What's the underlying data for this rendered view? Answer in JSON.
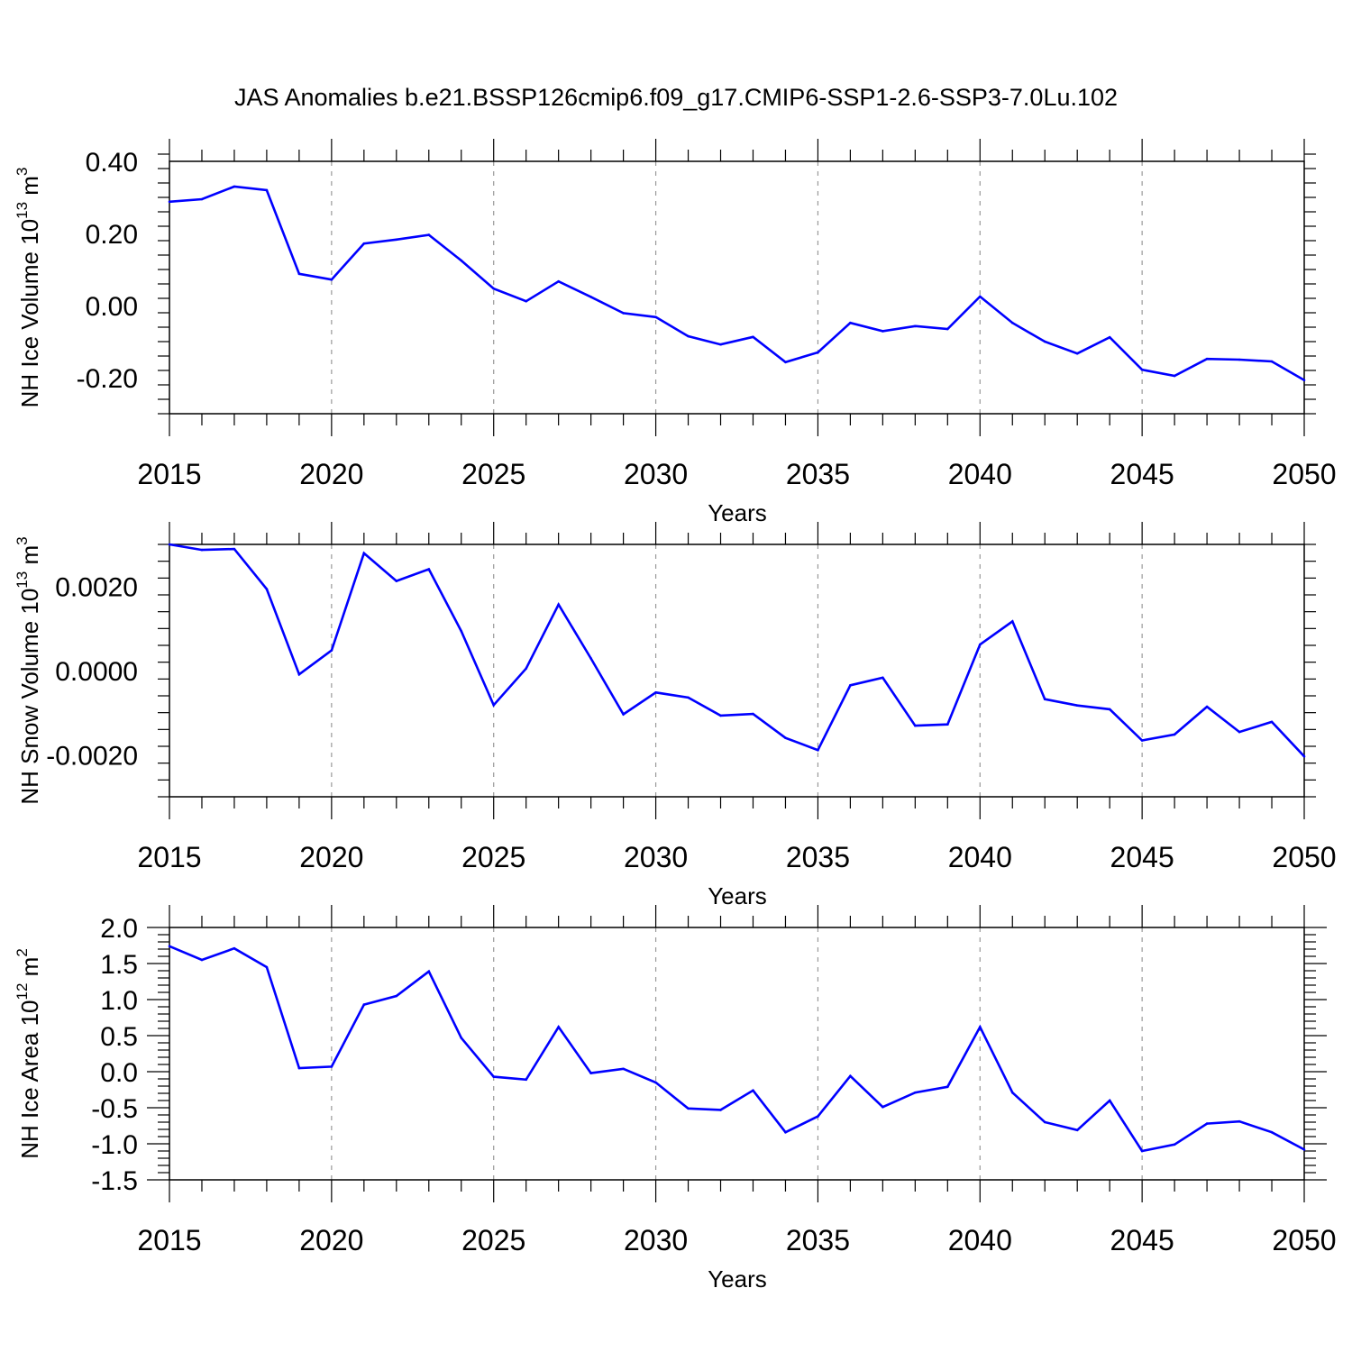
{
  "title": "JAS Anomalies b.e21.BSSP126cmip6.f09_g17.CMIP6-SSP1-2.6-SSP3-7.0Lu.102",
  "chart_data": [
    {
      "type": "line",
      "ylabel": "NH Ice Volume 10",
      "ylabel_exp": "13",
      "ylabel_unit": " m",
      "ylabel_unit_exp": "3",
      "xlabel": "Years",
      "xlim": [
        2015,
        2050
      ],
      "ylim": [
        -0.3,
        0.4
      ],
      "yticks": [
        -0.2,
        0.0,
        0.2,
        0.4
      ],
      "ytick_labels": [
        "-0.20",
        "0.00",
        "0.20",
        "0.40"
      ],
      "xticks": [
        2015,
        2020,
        2025,
        2030,
        2035,
        2040,
        2045,
        2050
      ],
      "xtick_labels": [
        "2015",
        "2020",
        "2025",
        "2030",
        "2035",
        "2040",
        "2045",
        "2050"
      ],
      "x": [
        2015,
        2016,
        2017,
        2018,
        2019,
        2020,
        2021,
        2022,
        2023,
        2024,
        2025,
        2026,
        2027,
        2028,
        2029,
        2030,
        2031,
        2032,
        2033,
        2034,
        2035,
        2036,
        2037,
        2038,
        2039,
        2040,
        2041,
        2042,
        2043,
        2044,
        2045,
        2046,
        2047,
        2048,
        2049,
        2050
      ],
      "values": [
        0.288,
        0.295,
        0.33,
        0.32,
        0.088,
        0.072,
        0.172,
        0.183,
        0.196,
        0.125,
        0.047,
        0.012,
        0.067,
        0.024,
        -0.021,
        -0.032,
        -0.085,
        -0.108,
        -0.087,
        -0.157,
        -0.13,
        -0.048,
        -0.071,
        -0.057,
        -0.065,
        0.025,
        -0.048,
        -0.1,
        -0.133,
        -0.088,
        -0.178,
        -0.195,
        -0.148,
        -0.15,
        -0.155,
        -0.207
      ],
      "color": "#0000ff",
      "grid": "vertical dashed"
    },
    {
      "type": "line",
      "ylabel": "NH Snow Volume 10",
      "ylabel_exp": "13",
      "ylabel_unit": " m",
      "ylabel_unit_exp": "3",
      "xlabel": "Years",
      "xlim": [
        2015,
        2050
      ],
      "ylim": [
        -0.003,
        0.003
      ],
      "yticks": [
        -0.002,
        0.0,
        0.002
      ],
      "ytick_labels": [
        "-0.0020",
        "0.0000",
        "0.0020"
      ],
      "xticks": [
        2015,
        2020,
        2025,
        2030,
        2035,
        2040,
        2045,
        2050
      ],
      "xtick_labels": [
        "2015",
        "2020",
        "2025",
        "2030",
        "2035",
        "2040",
        "2045",
        "2050"
      ],
      "x": [
        2015,
        2016,
        2017,
        2018,
        2019,
        2020,
        2021,
        2022,
        2023,
        2024,
        2025,
        2026,
        2027,
        2028,
        2029,
        2030,
        2031,
        2032,
        2033,
        2034,
        2035,
        2036,
        2037,
        2038,
        2039,
        2040,
        2041,
        2042,
        2043,
        2044,
        2045,
        2046,
        2047,
        2048,
        2049,
        2050
      ],
      "values": [
        0.003,
        0.00287,
        0.00289,
        0.00194,
        -9e-05,
        0.00048,
        0.00279,
        0.00213,
        0.00241,
        0.00094,
        -0.00082,
        5e-05,
        0.00157,
        0.00029,
        -0.00104,
        -0.00052,
        -0.00064,
        -0.00107,
        -0.00103,
        -0.0016,
        -0.00189,
        -0.00035,
        -0.00017,
        -0.00131,
        -0.00128,
        0.00062,
        0.00117,
        -0.00068,
        -0.00083,
        -0.00092,
        -0.00166,
        -0.00152,
        -0.00086,
        -0.00146,
        -0.00122,
        -0.00204
      ],
      "color": "#0000ff",
      "grid": "vertical dashed"
    },
    {
      "type": "line",
      "ylabel": "NH Ice Area 10",
      "ylabel_exp": "12",
      "ylabel_unit": " m",
      "ylabel_unit_exp": "2",
      "xlabel": "Years",
      "xlim": [
        2015,
        2050
      ],
      "ylim": [
        -1.5,
        2.0
      ],
      "yticks": [
        -1.5,
        -1.0,
        -0.5,
        0.0,
        0.5,
        1.0,
        1.5,
        2.0
      ],
      "ytick_labels": [
        "-1.5",
        "-1.0",
        "-0.5",
        "0.0",
        "0.5",
        "1.0",
        "1.5",
        "2.0"
      ],
      "xticks": [
        2015,
        2020,
        2025,
        2030,
        2035,
        2040,
        2045,
        2050
      ],
      "xtick_labels": [
        "2015",
        "2020",
        "2025",
        "2030",
        "2035",
        "2040",
        "2045",
        "2050"
      ],
      "x": [
        2015,
        2016,
        2017,
        2018,
        2019,
        2020,
        2021,
        2022,
        2023,
        2024,
        2025,
        2026,
        2027,
        2028,
        2029,
        2030,
        2031,
        2032,
        2033,
        2034,
        2035,
        2036,
        2037,
        2038,
        2039,
        2040,
        2041,
        2042,
        2043,
        2044,
        2045,
        2046,
        2047,
        2048,
        2049,
        2050
      ],
      "values": [
        1.74,
        1.55,
        1.71,
        1.45,
        0.05,
        0.07,
        0.93,
        1.05,
        1.39,
        0.47,
        -0.07,
        -0.11,
        0.62,
        -0.02,
        0.04,
        -0.15,
        -0.51,
        -0.53,
        -0.26,
        -0.84,
        -0.62,
        -0.06,
        -0.49,
        -0.29,
        -0.21,
        0.62,
        -0.29,
        -0.7,
        -0.81,
        -0.4,
        -1.1,
        -1.01,
        -0.72,
        -0.69,
        -0.84,
        -1.08
      ],
      "color": "#0000ff",
      "grid": "vertical dashed"
    }
  ]
}
